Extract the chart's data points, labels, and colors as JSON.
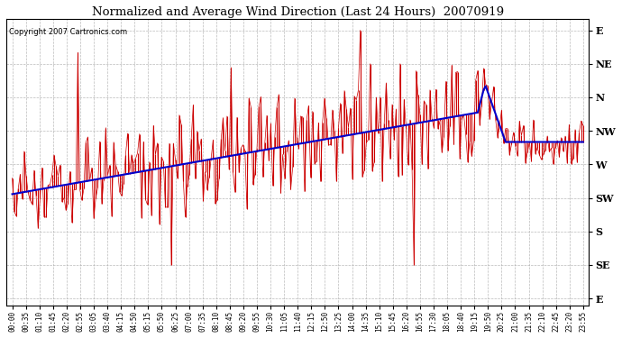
{
  "title": "Normalized and Average Wind Direction (Last 24 Hours)  20070919",
  "copyright": "Copyright 2007 Cartronics.com",
  "background_color": "#ffffff",
  "plot_bg_color": "#ffffff",
  "grid_color": "#aaaaaa",
  "red_color": "#cc0000",
  "blue_color": "#0000cc",
  "y_labels": [
    "E",
    "NE",
    "N",
    "NW",
    "W",
    "SW",
    "S",
    "SE",
    "E"
  ],
  "y_ticks": [
    360,
    315,
    270,
    225,
    180,
    135,
    90,
    45,
    0
  ],
  "x_tick_labels": [
    "00:00",
    "00:35",
    "01:10",
    "01:45",
    "02:20",
    "02:55",
    "03:05",
    "03:40",
    "04:15",
    "04:50",
    "05:15",
    "05:50",
    "06:25",
    "07:00",
    "07:35",
    "08:10",
    "08:45",
    "09:20",
    "09:55",
    "10:30",
    "11:05",
    "11:40",
    "12:15",
    "12:50",
    "13:25",
    "14:00",
    "14:35",
    "15:10",
    "15:45",
    "16:20",
    "16:55",
    "17:30",
    "18:05",
    "18:40",
    "19:15",
    "19:50",
    "20:25",
    "21:00",
    "21:35",
    "22:10",
    "22:45",
    "23:20",
    "23:55"
  ],
  "ylim": [
    -10,
    375
  ],
  "num_points": 288,
  "figsize": [
    6.9,
    3.75
  ],
  "dpi": 100
}
